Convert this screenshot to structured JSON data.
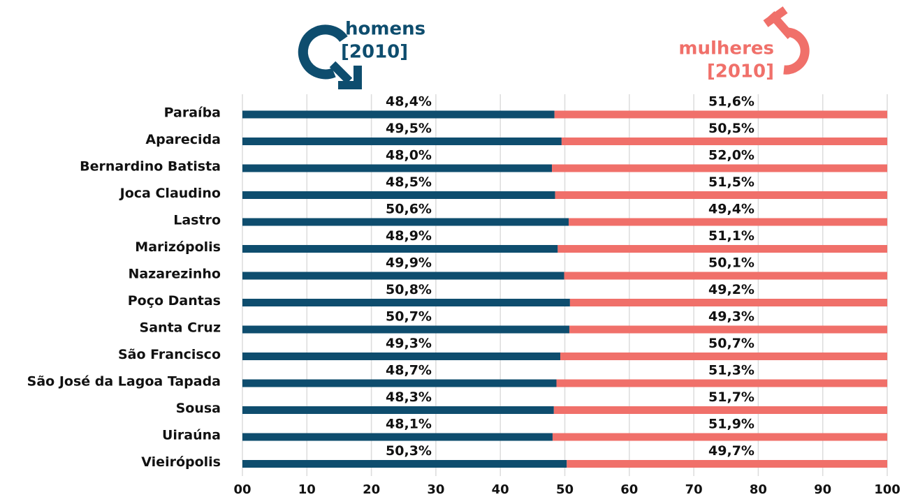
{
  "chart_data": {
    "type": "stacked-bar-horizontal",
    "categories": [
      "Paraíba",
      "Aparecida",
      "Bernardino Batista",
      "Joca Claudino",
      "Lastro",
      "Marizópolis",
      "Nazarezinho",
      "Poço Dantas",
      "Santa Cruz",
      "São Francisco",
      "São José da Lagoa Tapada",
      "Sousa",
      "Uiraúna",
      "Vieirópolis"
    ],
    "series": [
      {
        "name": "homens",
        "period": "[2010]",
        "color": "#0e4d6e",
        "values": [
          48.4,
          49.5,
          48.0,
          48.5,
          50.6,
          48.9,
          49.9,
          50.8,
          50.7,
          49.3,
          48.7,
          48.3,
          48.1,
          50.3
        ],
        "value_labels": [
          "48,4%",
          "49,5%",
          "48,0%",
          "48,5%",
          "50,6%",
          "48,9%",
          "49,9%",
          "50,8%",
          "50,7%",
          "49,3%",
          "48,7%",
          "48,3%",
          "48,1%",
          "50,3%"
        ]
      },
      {
        "name": "mulheres",
        "period": "[2010]",
        "color": "#f0706a",
        "values": [
          51.6,
          50.5,
          52.0,
          51.5,
          49.4,
          51.1,
          50.1,
          49.2,
          49.3,
          50.7,
          51.3,
          51.7,
          51.9,
          49.7
        ],
        "value_labels": [
          "51,6%",
          "50,5%",
          "52,0%",
          "51,5%",
          "49,4%",
          "51,1%",
          "50,1%",
          "49,2%",
          "49,3%",
          "50,7%",
          "51,3%",
          "51,7%",
          "51,9%",
          "49,7%"
        ]
      }
    ],
    "xlim": [
      0,
      100
    ],
    "xticks": [
      {
        "value": 0,
        "label": "00"
      },
      10,
      20,
      30,
      40,
      50,
      60,
      70,
      80,
      90,
      100
    ],
    "grid": true
  }
}
